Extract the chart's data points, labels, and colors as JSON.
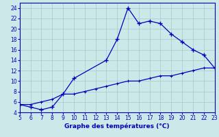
{
  "xlabel": "Graphe des températures (°C)",
  "x_upper": [
    5,
    6,
    7,
    8,
    9,
    10,
    13,
    14,
    15,
    16,
    17,
    18,
    19,
    20,
    21,
    22,
    23
  ],
  "y_upper": [
    5.5,
    5.0,
    4.5,
    5.0,
    7.5,
    10.5,
    14.0,
    18.0,
    24.0,
    21.0,
    21.5,
    21.0,
    19.0,
    17.5,
    16.0,
    15.0,
    12.5
  ],
  "x_lower": [
    5,
    6,
    7,
    8,
    9,
    10,
    11,
    12,
    13,
    14,
    15,
    16,
    17,
    18,
    19,
    20,
    21,
    22,
    23
  ],
  "y_lower": [
    5.5,
    5.5,
    6.0,
    6.5,
    7.5,
    7.5,
    8.0,
    8.5,
    9.0,
    9.5,
    10.0,
    10.0,
    10.5,
    11.0,
    11.0,
    11.5,
    12.0,
    12.5,
    12.5
  ],
  "line_color": "#0000bb",
  "bg_color": "#cce8e8",
  "xlim": [
    5,
    23
  ],
  "ylim": [
    4,
    25
  ],
  "yticks": [
    4,
    6,
    8,
    10,
    12,
    14,
    16,
    18,
    20,
    22,
    24
  ],
  "xticks": [
    5,
    6,
    7,
    8,
    9,
    10,
    11,
    12,
    13,
    14,
    15,
    16,
    17,
    18,
    19,
    20,
    21,
    22,
    23
  ]
}
